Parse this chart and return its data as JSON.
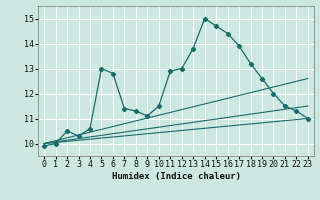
{
  "title": "",
  "xlabel": "Humidex (Indice chaleur)",
  "ylabel": "",
  "xlim": [
    -0.5,
    23.5
  ],
  "ylim": [
    9.5,
    15.5
  ],
  "xticks": [
    0,
    1,
    2,
    3,
    4,
    5,
    6,
    7,
    8,
    9,
    10,
    11,
    12,
    13,
    14,
    15,
    16,
    17,
    18,
    19,
    20,
    21,
    22,
    23
  ],
  "yticks": [
    10,
    11,
    12,
    13,
    14,
    15
  ],
  "bg_color": "#cce8e0",
  "line_color": "#1a6b6b",
  "grid_color": "#ffffff",
  "line1_x": [
    0,
    1,
    2,
    3,
    4,
    5,
    6,
    7,
    8,
    9,
    10,
    11,
    12,
    13,
    14,
    15,
    16,
    17,
    18,
    19,
    20,
    21,
    22,
    23
  ],
  "line1_y": [
    9.9,
    10.0,
    10.5,
    10.3,
    10.6,
    13.0,
    12.8,
    11.4,
    11.3,
    11.1,
    11.5,
    12.9,
    13.0,
    13.8,
    15.0,
    14.7,
    14.4,
    13.9,
    13.2,
    12.6,
    12.0,
    11.5,
    11.3,
    11.0
  ],
  "line2_x": [
    0,
    23
  ],
  "line2_y": [
    10.0,
    11.0
  ],
  "line3_x": [
    0,
    23
  ],
  "line3_y": [
    10.0,
    12.6
  ],
  "line4_x": [
    0,
    23
  ],
  "line4_y": [
    10.0,
    11.5
  ]
}
